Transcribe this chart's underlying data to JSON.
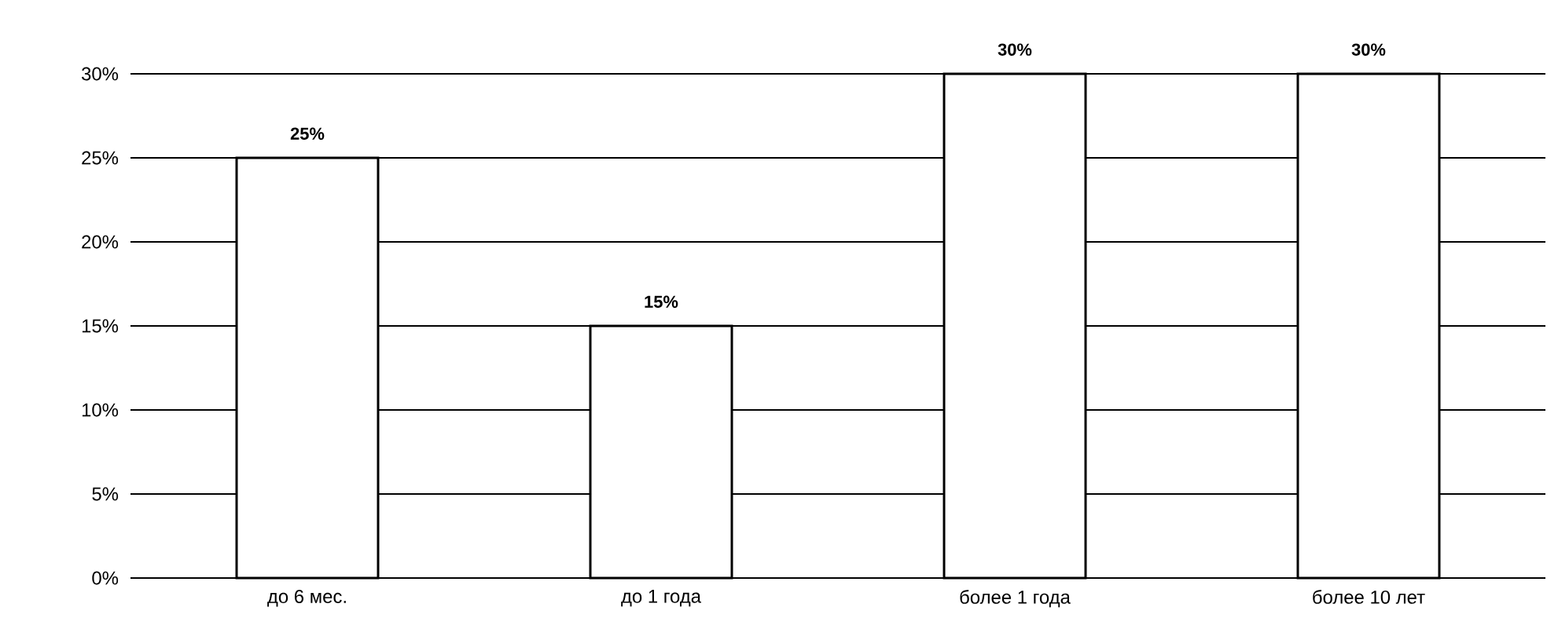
{
  "chart_data": {
    "type": "bar",
    "categories": [
      "до 6 мес.",
      "до 1 года",
      "более 1 года",
      "более 10 лет"
    ],
    "values": [
      25,
      15,
      30,
      30
    ],
    "value_labels": [
      "25%",
      "15%",
      "30%",
      "30%"
    ],
    "color": "#ffffff",
    "ylim": [
      0,
      30
    ],
    "yticks": [
      {
        "value": 0,
        "label": "0%"
      },
      {
        "value": 5,
        "label": "5%"
      },
      {
        "value": 10,
        "label": "10%"
      },
      {
        "value": 15,
        "label": "15%"
      },
      {
        "value": 20,
        "label": "20%"
      },
      {
        "value": 25,
        "label": "25%"
      },
      {
        "value": 30,
        "label": "30%"
      }
    ],
    "grid": "y"
  }
}
